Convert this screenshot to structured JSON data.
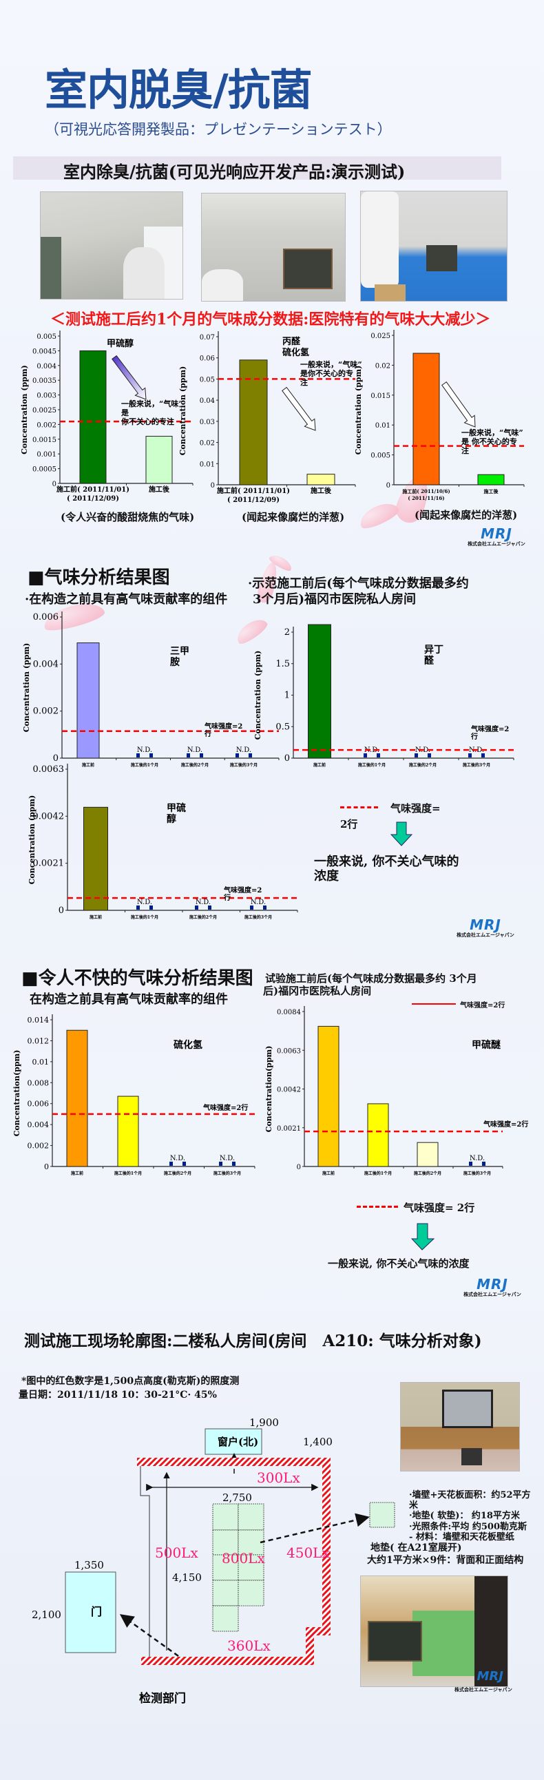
{
  "header": {
    "title": "室内脱臭/抗菌",
    "subtitle": "（可視光応答開発製品：プレゼンテーションテスト）",
    "banner": "室内除臭/抗菌(可见光响应开发产品:演示测试)",
    "red_heading": "＜测试施工后约1个月的气味成分数据:医院特有的气味大大减少＞"
  },
  "logo": {
    "brand": "MRJ",
    "company": "株式会社エムエージャパン",
    "color": "#1a73c8"
  },
  "colors": {
    "title": "#1f4e9a",
    "threshold": "#ff0000",
    "lux": "#ff1a75",
    "arrow": "#00cc99"
  },
  "section1": {
    "captions": [
      "(令人兴奋的酸甜烧焦的气味)",
      "(闻起来像腐烂的洋葱)",
      "(闻起来像腐烂的洋葱)"
    ]
  },
  "section2": {
    "heading": "■气味分析结果图",
    "left_sub": "·在构造之前具有高气味贡献率的组件",
    "right_sub": [
      "·示范施工前后(每个气味成分数据最多约",
      "3个月后)福冈市医院私人房间"
    ],
    "legend_label": "气味强度=",
    "legend_label2": "2行",
    "conclusion": [
      "一般来说, 你不关心气味的",
      "浓度"
    ]
  },
  "section3": {
    "heading": "■令人不快的气味分析结果图",
    "left_sub": "在构造之前具有高气味贡献率的组件",
    "right_sub": [
      "试验施工前后(每个气味成分数据最多约 3个月",
      "后)福冈市医院私人房间"
    ],
    "legend_top": "气味强度=2行",
    "legend": "气味强度= 2行",
    "conclusion": "一般来说, 你不关心气味的浓度"
  },
  "section4": {
    "title": "测试施工现场轮廓图:二楼私人房间(房间　A210: 气味分析对象)",
    "note": [
      "*图中的红色数字是1,500点高度(勒克斯)的照度测",
      "量日期：2011/11/18 10：30-21°C· 45%"
    ],
    "window_label": "窗户(北)",
    "door_label": "门",
    "dept_label": "检测部门",
    "dims": {
      "window_width": "1,900",
      "window_offset": "1,400",
      "room_width": "2,750",
      "room_depth": "4,150",
      "door_width": "1,350",
      "door_height": "2,100"
    },
    "lux": {
      "north": "300Lx",
      "west": "500Lx",
      "center": "800Lx",
      "east": "450Lx",
      "south": "360Lx"
    },
    "specs": [
      "·墙壁+天花板面积：约52平方",
      "米",
      "·地垫( 软垫)：  约18平方米",
      "·光照条件:平均  约500勒克斯",
      "- 材料：墙壁和天花板壁纸",
      "地垫( 在A21室展开)",
      "大约1平方米×9件：背面和正面结构"
    ]
  },
  "chart_data": [
    {
      "type": "bar",
      "ylabel": "Concentration (ppm)",
      "labels": [
        "甲硫醇"
      ],
      "ylim": [
        0,
        0.005
      ],
      "yticks": [
        0,
        0.0005,
        0.001,
        0.0015,
        0.002,
        0.0025,
        0.003,
        0.0035,
        0.004,
        0.0045,
        0.005
      ],
      "categories": [
        "施工前( 2011/11/01)\n( 2011/12/09)",
        "施工後"
      ],
      "values": [
        0.0045,
        0.0016
      ],
      "colors": [
        "#007a00",
        "#ccffcc"
      ],
      "threshold": 0.0021,
      "threshold_label": "",
      "note": [
        "一般来说，“气味”",
        "是",
        "你不关心的专注"
      ],
      "caption_index": 0
    },
    {
      "type": "bar",
      "ylabel": "Concentration (ppm)",
      "labels": [
        "丙醛",
        "硫化氢"
      ],
      "ylim": [
        0,
        0.07
      ],
      "yticks": [
        0,
        0.01,
        0.02,
        0.03,
        0.04,
        0.05,
        0.06,
        0.07
      ],
      "categories": [
        "施工前( 2011/11/01)\n( 2011/12/09)",
        "施工後"
      ],
      "values": [
        0.059,
        0.005
      ],
      "colors": [
        "#808000",
        "#ffff99"
      ],
      "threshold": 0.05,
      "threshold_label": "",
      "note": [
        "一般来说，“气味”",
        "是你不关心的专",
        "注"
      ],
      "caption_index": 1
    },
    {
      "type": "bar",
      "ylabel": "Concentration (ppm)",
      "labels": [],
      "ylim": [
        0,
        0.025
      ],
      "yticks": [
        0,
        0.005,
        0.01,
        0.015,
        0.02,
        0.025
      ],
      "categories": [
        "施工前( 2011/10/6)\n( 2011/11/16)",
        "施工後"
      ],
      "values": [
        0.022,
        0.0017
      ],
      "colors": [
        "#ff6600",
        "#00ee00"
      ],
      "threshold": 0.0065,
      "threshold_label": "",
      "note": [
        "一般来说，“气味”",
        "是 你不关心的专",
        "注"
      ],
      "caption_index": 2
    },
    {
      "type": "bar",
      "ylabel": "Concentration (ppm)",
      "labels": [
        "三甲胺"
      ],
      "ylim": [
        0,
        0.006
      ],
      "yticks": [
        0,
        0.002,
        0.004,
        0.006
      ],
      "categories": [
        "施工前",
        "施工後的1个月",
        "施工後的2个月",
        "施工後的3个月"
      ],
      "values": [
        0.0049,
        null,
        null,
        null
      ],
      "colors": [
        "#9999ff"
      ],
      "nd_label": "N.D.",
      "threshold": 0.00115,
      "threshold_label": "气味强度=2行"
    },
    {
      "type": "bar",
      "ylabel": "Concentration (ppm)",
      "labels": [
        "异丁醛"
      ],
      "ylim": [
        0,
        2
      ],
      "yticks": [
        0,
        0.5,
        1,
        1.5,
        2
      ],
      "categories": [
        "施工前",
        "施工後的1个月",
        "施工後的2个月",
        "施工後的3个月"
      ],
      "values": [
        2.12,
        null,
        null,
        null
      ],
      "colors": [
        "#007a00"
      ],
      "nd_label": "N.D.",
      "threshold": 0.13,
      "threshold_label": "气味强度=2行"
    },
    {
      "type": "bar",
      "ylabel": "Concentration (ppm)",
      "labels": [
        "甲硫醇"
      ],
      "ylim": [
        0,
        0.0063
      ],
      "yticks": [
        0,
        0.0021,
        0.0042,
        0.0063
      ],
      "categories": [
        "施工前",
        "施工後的1个月",
        "施工後的2个月",
        "施工後的3个月"
      ],
      "values": [
        0.0046,
        null,
        null,
        null
      ],
      "colors": [
        "#808000"
      ],
      "nd_label": "N.D.",
      "threshold": 0.00055,
      "threshold_label": "气味强度=2行"
    },
    {
      "type": "bar",
      "ylabel": "Concentration(ppm)",
      "labels": [
        "硫化氢"
      ],
      "ylim": [
        0,
        0.014
      ],
      "yticks": [
        0,
        0.002,
        0.004,
        0.006,
        0.008,
        0.01,
        0.012,
        0.014
      ],
      "categories": [
        "施工前",
        "施工後的1个月",
        "施工後的2个月",
        "施工後的3个月"
      ],
      "values": [
        0.013,
        0.0067,
        null,
        null
      ],
      "colors": [
        "#ff9900",
        "#ffff00"
      ],
      "nd_label": "N.D.",
      "threshold": 0.005,
      "threshold_label": "气味强度=2行"
    },
    {
      "type": "bar",
      "ylabel": "Concentration(ppm)",
      "labels": [
        "甲硫醚"
      ],
      "ylim": [
        0,
        0.0084
      ],
      "yticks": [
        0,
        0.0021,
        0.0042,
        0.0063,
        0.0084
      ],
      "categories": [
        "施工前",
        "施工後的1个月",
        "施工後的2个月",
        "施工後的3个月"
      ],
      "values": [
        0.0076,
        0.0034,
        0.0013,
        null
      ],
      "colors": [
        "#ffcc00",
        "#ffff00",
        "#ffffcc"
      ],
      "nd_label": "N.D.",
      "threshold": 0.0019,
      "threshold_label": "气味强度=2行"
    }
  ]
}
